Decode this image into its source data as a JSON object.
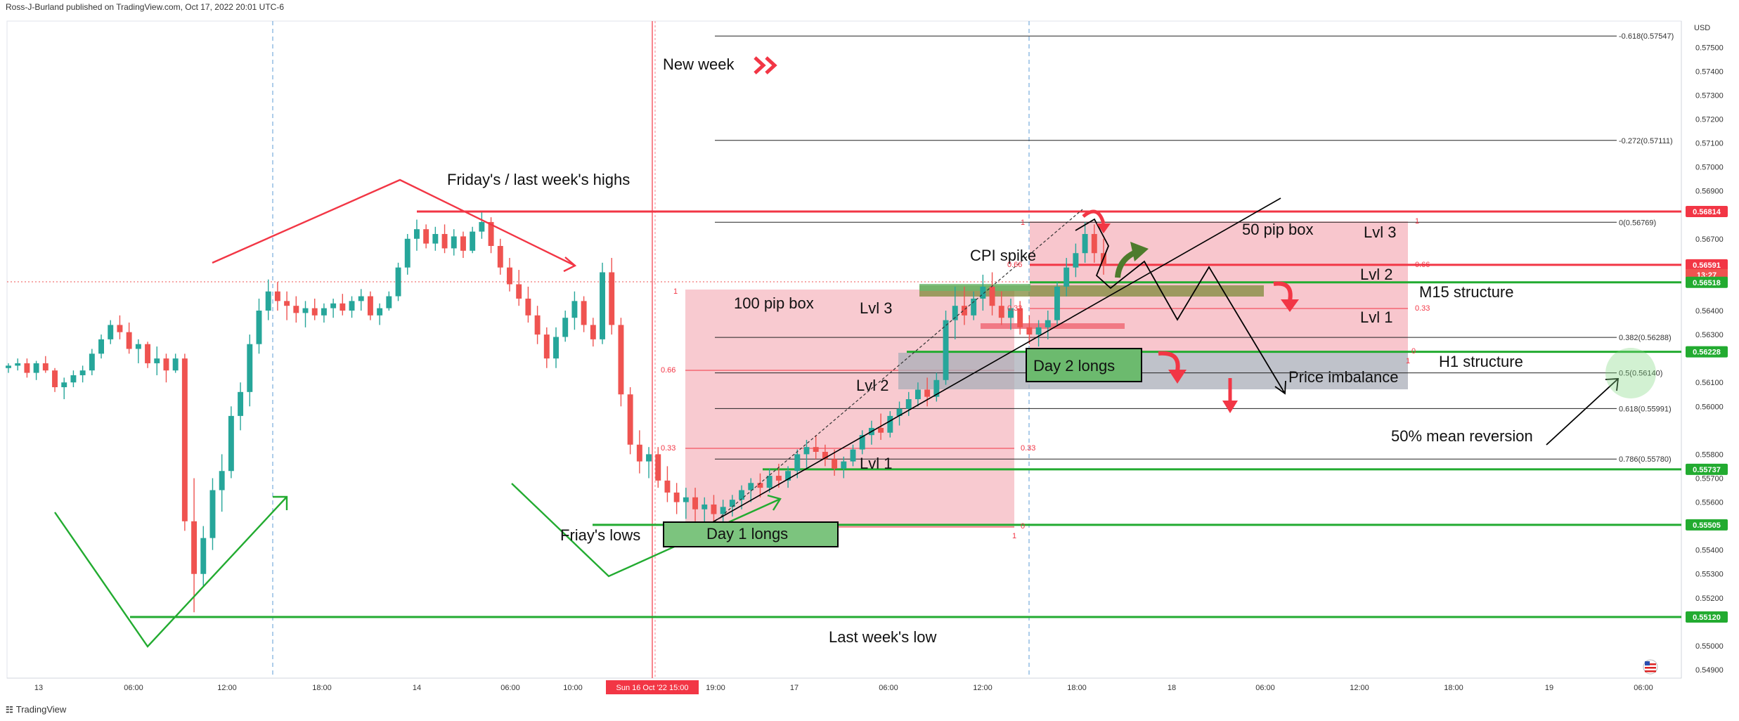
{
  "header": {
    "publisher": "Ross-J-Burland published on TradingView.com, Oct 17, 2022 20:01 UTC-6",
    "currency": "USD"
  },
  "footer": {
    "brand": "TradingView",
    "logo": "tradingview-logo-icon"
  },
  "colors": {
    "up": "#26a69a",
    "down": "#ef5350",
    "red_line": "#f23645",
    "green_line": "#22ab30",
    "pink_box": "#f7c0c6",
    "green_box": "#7cc47e",
    "gray_box": "#b9bdc6",
    "olive_box": "#8a8f46",
    "dark_green_arrow": "#2e6b2e",
    "fib_line": "#1e1e1e"
  },
  "chart_data": {
    "type": "candlestick",
    "instrument": "NZDUSD (inferred)",
    "y_range": [
      0.549,
      0.5758
    ],
    "x_axis_labels": [
      "13",
      "06:00",
      "12:00",
      "18:00",
      "14",
      "06:00",
      "10:00",
      "Sun 16 Oct '22  15:00",
      "19:00",
      "17",
      "06:00",
      "12:00",
      "18:00",
      "18",
      "06:00",
      "12:00",
      "18:00",
      "19",
      "06:00"
    ],
    "y_axis_ticks": [
      "0.57500",
      "0.57400",
      "0.57300",
      "0.57200",
      "0.57100",
      "0.57000",
      "0.56900",
      "0.56700",
      "0.56400",
      "0.56300",
      "0.56100",
      "0.56000",
      "0.55800",
      "0.55700",
      "0.55600",
      "0.55400",
      "0.55300",
      "0.55200",
      "0.55000",
      "0.54900"
    ],
    "price_badges": [
      {
        "label": "0.56814",
        "price": 0.56814,
        "color": "#f23645"
      },
      {
        "label": "0.56591",
        "price": 0.56591,
        "color": "#f23645"
      },
      {
        "label": "13:27",
        "price": 0.5655,
        "color": "#ef5350"
      },
      {
        "label": "0.56518",
        "price": 0.56518,
        "color": "#22ab30"
      },
      {
        "label": "0.56228",
        "price": 0.56228,
        "color": "#22ab30"
      },
      {
        "label": "0.55737",
        "price": 0.55737,
        "color": "#22ab30"
      },
      {
        "label": "0.55505",
        "price": 0.55505,
        "color": "#22ab30"
      },
      {
        "label": "0.55120",
        "price": 0.5512,
        "color": "#22ab30"
      }
    ],
    "fib_levels": [
      {
        "label": "-0.618(0.57547)",
        "price": 0.57547
      },
      {
        "label": "-0.272(0.57111)",
        "price": 0.57111
      },
      {
        "label": "0(0.56769)",
        "price": 0.56769
      },
      {
        "label": "0.382(0.56288)",
        "price": 0.56288
      },
      {
        "label": "0.5(0.56140)",
        "price": 0.5614
      },
      {
        "label": "0.618(0.55991)",
        "price": 0.55991
      },
      {
        "label": "0.786(0.55780)",
        "price": 0.5578
      }
    ],
    "annotations": [
      "New week",
      "Friday's / last week's highs",
      "100 pip box",
      "Lvl 3",
      "Lvl 2",
      "Lvl 1",
      "CPI spike",
      "50 pip box",
      "Lvl 3",
      "Lvl 2",
      "Lvl 1",
      "M15 structure",
      "H1 structure",
      "Day 2 longs",
      "Price imbalance",
      "50% mean reversion",
      "Friay's lows",
      "Day 1 longs",
      "Last week's low"
    ],
    "box_labels": [
      "1",
      "0.66",
      "0.33",
      "0.33",
      "0",
      "1",
      "1",
      "0.66",
      "0.33",
      "1",
      "0.66",
      "0.33",
      "0",
      "1"
    ],
    "candles": [
      [
        0.5616,
        0.5618,
        0.5614,
        0.5617
      ],
      [
        0.5617,
        0.562,
        0.5615,
        0.5618
      ],
      [
        0.5618,
        0.562,
        0.5612,
        0.5614
      ],
      [
        0.5614,
        0.5619,
        0.5611,
        0.5618
      ],
      [
        0.5618,
        0.5621,
        0.5614,
        0.5615
      ],
      [
        0.5615,
        0.5616,
        0.5606,
        0.5608
      ],
      [
        0.5608,
        0.5612,
        0.5603,
        0.561
      ],
      [
        0.561,
        0.5615,
        0.5608,
        0.5613
      ],
      [
        0.5613,
        0.5617,
        0.561,
        0.5615
      ],
      [
        0.5615,
        0.5624,
        0.5613,
        0.5622
      ],
      [
        0.5622,
        0.563,
        0.562,
        0.5628
      ],
      [
        0.5628,
        0.5636,
        0.5626,
        0.5634
      ],
      [
        0.5634,
        0.5638,
        0.5628,
        0.5631
      ],
      [
        0.5631,
        0.5635,
        0.5622,
        0.5624
      ],
      [
        0.5624,
        0.5628,
        0.5618,
        0.5626
      ],
      [
        0.5626,
        0.5627,
        0.5616,
        0.5618
      ],
      [
        0.5618,
        0.5625,
        0.5613,
        0.562
      ],
      [
        0.562,
        0.5622,
        0.561,
        0.5615
      ],
      [
        0.5615,
        0.5622,
        0.5614,
        0.562
      ],
      [
        0.562,
        0.5622,
        0.5548,
        0.5552
      ],
      [
        0.5552,
        0.557,
        0.5514,
        0.553
      ],
      [
        0.553,
        0.555,
        0.5525,
        0.5545
      ],
      [
        0.5545,
        0.557,
        0.554,
        0.5565
      ],
      [
        0.5565,
        0.558,
        0.5556,
        0.5573
      ],
      [
        0.5573,
        0.56,
        0.557,
        0.5596
      ],
      [
        0.5596,
        0.561,
        0.559,
        0.5606
      ],
      [
        0.5606,
        0.563,
        0.56,
        0.5626
      ],
      [
        0.5626,
        0.5645,
        0.5622,
        0.564
      ],
      [
        0.564,
        0.5653,
        0.5636,
        0.5648
      ],
      [
        0.5648,
        0.5652,
        0.564,
        0.5644
      ],
      [
        0.5644,
        0.5648,
        0.5636,
        0.5642
      ],
      [
        0.5642,
        0.5646,
        0.5635,
        0.5639
      ],
      [
        0.5639,
        0.5644,
        0.5633,
        0.5641
      ],
      [
        0.5641,
        0.5645,
        0.5636,
        0.5638
      ],
      [
        0.5638,
        0.5643,
        0.5635,
        0.5641
      ],
      [
        0.5641,
        0.5645,
        0.5637,
        0.5643
      ],
      [
        0.5643,
        0.5647,
        0.5638,
        0.564
      ],
      [
        0.564,
        0.5646,
        0.5637,
        0.5644
      ],
      [
        0.5644,
        0.5649,
        0.564,
        0.5646
      ],
      [
        0.5646,
        0.5648,
        0.5636,
        0.5638
      ],
      [
        0.5638,
        0.5643,
        0.5634,
        0.5641
      ],
      [
        0.5641,
        0.5648,
        0.564,
        0.5646
      ],
      [
        0.5646,
        0.566,
        0.5644,
        0.5658
      ],
      [
        0.5658,
        0.5672,
        0.5655,
        0.567
      ],
      [
        0.567,
        0.5678,
        0.5665,
        0.5674
      ],
      [
        0.5674,
        0.5676,
        0.5666,
        0.5668
      ],
      [
        0.5668,
        0.5675,
        0.5665,
        0.5672
      ],
      [
        0.5672,
        0.5676,
        0.5664,
        0.5666
      ],
      [
        0.5666,
        0.5674,
        0.5663,
        0.5671
      ],
      [
        0.5671,
        0.5673,
        0.5662,
        0.5665
      ],
      [
        0.5665,
        0.5675,
        0.5664,
        0.5673
      ],
      [
        0.5673,
        0.5681,
        0.567,
        0.5677
      ],
      [
        0.5677,
        0.5679,
        0.5664,
        0.5667
      ],
      [
        0.5667,
        0.567,
        0.5655,
        0.5658
      ],
      [
        0.5658,
        0.5662,
        0.5648,
        0.5651
      ],
      [
        0.5651,
        0.5657,
        0.5642,
        0.5645
      ],
      [
        0.5645,
        0.565,
        0.5635,
        0.5638
      ],
      [
        0.5638,
        0.5642,
        0.5626,
        0.563
      ],
      [
        0.563,
        0.5633,
        0.5616,
        0.562
      ],
      [
        0.562,
        0.5633,
        0.5616,
        0.5629
      ],
      [
        0.5629,
        0.564,
        0.5627,
        0.5637
      ],
      [
        0.5637,
        0.5648,
        0.5632,
        0.5644
      ],
      [
        0.5644,
        0.5646,
        0.5631,
        0.5634
      ],
      [
        0.5634,
        0.5637,
        0.5625,
        0.5628
      ],
      [
        0.5628,
        0.566,
        0.5626,
        0.5656
      ],
      [
        0.5656,
        0.5662,
        0.563,
        0.5634
      ],
      [
        0.5634,
        0.5637,
        0.56,
        0.5605
      ],
      [
        0.5605,
        0.5608,
        0.558,
        0.5584
      ],
      [
        0.5584,
        0.559,
        0.5572,
        0.5577
      ],
      [
        0.5577,
        0.5583,
        0.557,
        0.558
      ],
      [
        0.558,
        0.5583,
        0.5566,
        0.5569
      ],
      [
        0.5569,
        0.5575,
        0.556,
        0.5564
      ],
      [
        0.5564,
        0.5568,
        0.5555,
        0.556
      ],
      [
        0.556,
        0.5566,
        0.5553,
        0.5562
      ],
      [
        0.5562,
        0.5566,
        0.5552,
        0.5557
      ],
      [
        0.5557,
        0.5562,
        0.555,
        0.5559
      ],
      [
        0.5559,
        0.5563,
        0.5552,
        0.5555
      ],
      [
        0.5555,
        0.5561,
        0.5551,
        0.5558
      ],
      [
        0.5558,
        0.5563,
        0.5554,
        0.5561
      ],
      [
        0.5561,
        0.5567,
        0.5557,
        0.5565
      ],
      [
        0.5565,
        0.557,
        0.556,
        0.5568
      ],
      [
        0.5568,
        0.5572,
        0.5562,
        0.5566
      ],
      [
        0.5566,
        0.5574,
        0.5564,
        0.5571
      ],
      [
        0.5571,
        0.5576,
        0.5566,
        0.5569
      ],
      [
        0.5569,
        0.5575,
        0.5566,
        0.5573
      ],
      [
        0.5573,
        0.5582,
        0.557,
        0.558
      ],
      [
        0.558,
        0.5586,
        0.5574,
        0.5583
      ],
      [
        0.5583,
        0.5588,
        0.5578,
        0.5581
      ],
      [
        0.5581,
        0.5584,
        0.5575,
        0.5578
      ],
      [
        0.5578,
        0.5582,
        0.5571,
        0.5574
      ],
      [
        0.5574,
        0.5579,
        0.557,
        0.5577
      ],
      [
        0.5577,
        0.5584,
        0.5575,
        0.5582
      ],
      [
        0.5582,
        0.559,
        0.558,
        0.5588
      ],
      [
        0.5588,
        0.5594,
        0.5584,
        0.5591
      ],
      [
        0.5591,
        0.5597,
        0.5586,
        0.5589
      ],
      [
        0.5589,
        0.5598,
        0.5587,
        0.5596
      ],
      [
        0.5596,
        0.5602,
        0.5592,
        0.5599
      ],
      [
        0.5599,
        0.5606,
        0.5596,
        0.5603
      ],
      [
        0.5603,
        0.561,
        0.56,
        0.5607
      ],
      [
        0.5607,
        0.5612,
        0.56,
        0.5604
      ],
      [
        0.5604,
        0.5614,
        0.5602,
        0.5611
      ],
      [
        0.5611,
        0.564,
        0.5609,
        0.5636
      ],
      [
        0.5636,
        0.565,
        0.5628,
        0.5642
      ],
      [
        0.5642,
        0.565,
        0.5634,
        0.5638
      ],
      [
        0.5638,
        0.5648,
        0.5636,
        0.5645
      ],
      [
        0.5645,
        0.5655,
        0.564,
        0.565
      ],
      [
        0.565,
        0.5656,
        0.5638,
        0.5642
      ],
      [
        0.5642,
        0.5648,
        0.5634,
        0.5637
      ],
      [
        0.5637,
        0.5645,
        0.5632,
        0.5641
      ],
      [
        0.5641,
        0.5644,
        0.563,
        0.5633
      ],
      [
        0.5633,
        0.5638,
        0.5626,
        0.563
      ],
      [
        0.563,
        0.5636,
        0.5625,
        0.5633
      ],
      [
        0.5633,
        0.564,
        0.5628,
        0.5636
      ],
      [
        0.5636,
        0.5652,
        0.5634,
        0.565
      ],
      [
        0.565,
        0.5662,
        0.5646,
        0.5658
      ],
      [
        0.5658,
        0.5668,
        0.5654,
        0.5664
      ],
      [
        0.5664,
        0.5677,
        0.566,
        0.5672
      ],
      [
        0.5672,
        0.5676,
        0.566,
        0.5664
      ],
      [
        0.5664,
        0.567,
        0.5655,
        0.5659
      ]
    ]
  }
}
